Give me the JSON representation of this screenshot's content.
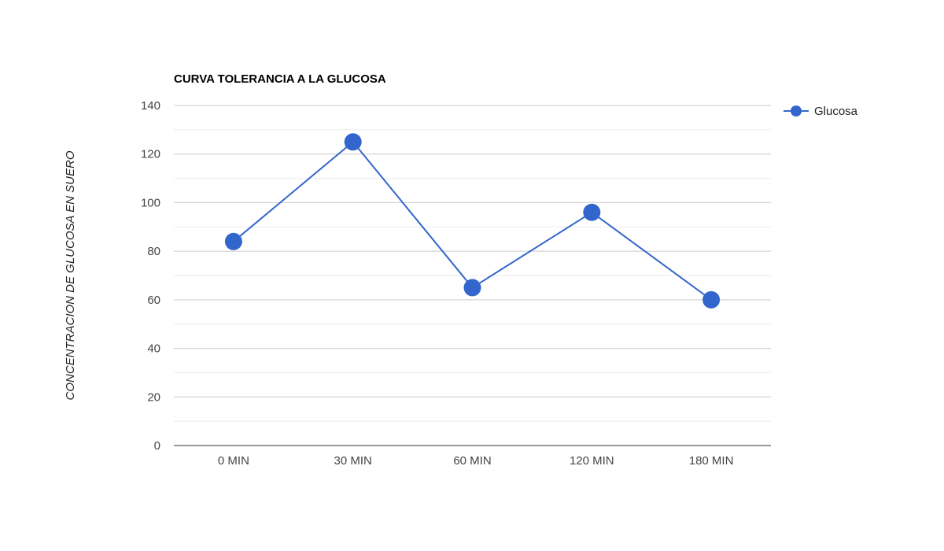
{
  "chart_data": {
    "type": "line",
    "title": "CURVA TOLERANCIA A LA GLUCOSA",
    "xlabel": "",
    "ylabel": "CONCENTRACION DE GLUCOSA EN SUERO",
    "categories": [
      "0 MIN",
      "30 MIN",
      "60 MIN",
      "120 MIN",
      "180 MIN"
    ],
    "series": [
      {
        "name": "Glucosa",
        "values": [
          84,
          125,
          65,
          96,
          60
        ],
        "color": "#3366cc"
      }
    ],
    "ylim": [
      0,
      140
    ],
    "yticks": [
      0,
      20,
      40,
      60,
      80,
      100,
      120,
      140
    ],
    "grid": true,
    "minor_grid": true,
    "legend": "right",
    "colors": {
      "major_grid": "#cccccc",
      "minor_grid": "#ebebeb",
      "baseline": "#333333"
    }
  }
}
